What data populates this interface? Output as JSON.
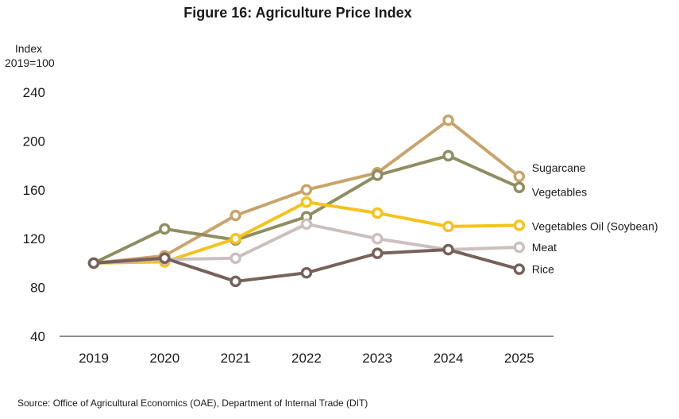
{
  "title": "Figure 16: Agriculture Price Index",
  "source": "Source: Office of Agricultural Economics (OAE), Department of Internal Trade (DIT)",
  "chart_data": {
    "type": "line",
    "ylabel_line1": "Index",
    "ylabel_line2": "2019=100",
    "categories": [
      "2019",
      "2020",
      "2021",
      "2022",
      "2023",
      "2024",
      "2025"
    ],
    "ylim": [
      40,
      240
    ],
    "yticks": [
      40,
      80,
      120,
      160,
      200,
      240
    ],
    "grid": false,
    "series": [
      {
        "name": "Sugarcane",
        "color": "#c9a46a",
        "values": [
          100,
          106,
          139,
          160,
          174,
          217,
          171
        ]
      },
      {
        "name": "Vegetables",
        "color": "#8f8d62",
        "values": [
          100,
          128,
          119,
          138,
          172,
          188,
          162
        ]
      },
      {
        "name": "Vegetables Oil (Soybean)",
        "color": "#f6c21d",
        "values": [
          100,
          101,
          120,
          150,
          141,
          130,
          131
        ]
      },
      {
        "name": "Meat",
        "color": "#ccbfbd",
        "values": [
          100,
          103,
          104,
          132,
          120,
          111,
          113
        ]
      },
      {
        "name": "Rice",
        "color": "#77625a",
        "values": [
          100,
          104,
          85,
          92,
          108,
          111,
          95
        ]
      }
    ]
  }
}
